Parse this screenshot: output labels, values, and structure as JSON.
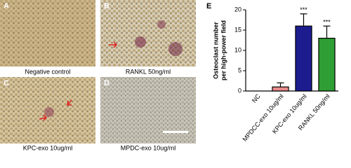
{
  "panels": [
    {
      "letter": "A",
      "caption": "Negative control"
    },
    {
      "letter": "B",
      "caption": "RANKL 50ng/ml"
    },
    {
      "letter": "C",
      "caption": "KPC-exo 10ug/ml"
    },
    {
      "letter": "D",
      "caption": "MPDC-exo 10ug/ml"
    }
  ],
  "chart_data": {
    "type": "bar",
    "panel_letter": "E",
    "y_label": [
      "Osteoclast number",
      "per high-power field"
    ],
    "categories": [
      "NC",
      "MPDCC-exo 10ug/ml",
      "KPC-exo 10ug/ml",
      "RANKL 50ng/ml"
    ],
    "values": [
      0,
      1,
      16,
      13
    ],
    "errors": [
      0,
      1,
      3,
      3
    ],
    "colors": [
      "#ffffff",
      "#e88a8a",
      "#1c1c8f",
      "#2f9e35"
    ],
    "value_annotations": [
      null,
      null,
      "***",
      "***"
    ],
    "ylim": [
      0,
      20
    ],
    "yticks": [
      0,
      5,
      10,
      15,
      20
    ]
  }
}
